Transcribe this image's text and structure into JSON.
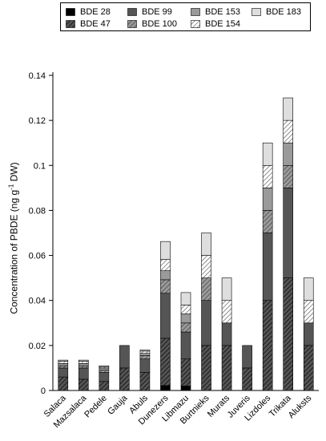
{
  "chart_data": {
    "type": "bar",
    "stacked": true,
    "ylabel_pre": "Concentration of PBDE (ng g",
    "ylabel_sup": "-1",
    "ylabel_post": " DW)",
    "ylim": [
      0,
      0.14
    ],
    "yticks": [
      "0",
      "0.02",
      "0.04",
      "0.06",
      "0.08",
      "0.1",
      "0.12",
      "0.14"
    ],
    "categories": [
      "Salaca",
      "Mazsalaca",
      "Pedele",
      "Gauja",
      "Abuls",
      "Dunezers",
      "Libmazu",
      "Burtnieks",
      "Murats",
      "Juveris",
      "Lizdoles",
      "Trikata",
      "Aluksts"
    ],
    "legend_position": "top",
    "series": [
      {
        "name": "BDE 28",
        "fill": "#000000",
        "pattern": "solid",
        "values": [
          0,
          0,
          0,
          0,
          0,
          0.0022,
          0.002,
          0,
          0,
          0,
          0,
          0,
          0
        ]
      },
      {
        "name": "BDE 47",
        "fill": "#555555",
        "pattern": "hatch",
        "values": [
          0.006,
          0.005,
          0.004,
          0.01,
          0.008,
          0.021,
          0.012,
          0.02,
          0.02,
          0.01,
          0.04,
          0.05,
          0.02
        ]
      },
      {
        "name": "BDE 99",
        "fill": "#555555",
        "pattern": "solid",
        "values": [
          0.004,
          0.005,
          0.004,
          0.01,
          0.006,
          0.02,
          0.012,
          0.02,
          0.01,
          0.01,
          0.03,
          0.04,
          0.01
        ]
      },
      {
        "name": "BDE 100",
        "fill": "#9a9a9a",
        "pattern": "hatch",
        "values": [
          0.001,
          0.001,
          0.001,
          0,
          0.0015,
          0.006,
          0.004,
          0.01,
          0,
          0,
          0.01,
          0.01,
          0
        ]
      },
      {
        "name": "BDE 153",
        "fill": "#9a9a9a",
        "pattern": "solid",
        "values": [
          0.001,
          0.001,
          0.001,
          0,
          0.001,
          0.004,
          0.004,
          0,
          0,
          0,
          0.01,
          0.01,
          0
        ]
      },
      {
        "name": "BDE 154",
        "fill": "#ffffff",
        "pattern": "hatch",
        "values": [
          0.001,
          0.001,
          0.0005,
          0,
          0.001,
          0.005,
          0.004,
          0.01,
          0.01,
          0,
          0.01,
          0.01,
          0.01
        ]
      },
      {
        "name": "BDE 183",
        "fill": "#dedede",
        "pattern": "solid",
        "values": [
          0.0005,
          0.0005,
          0.0005,
          0,
          0.0005,
          0.008,
          0.0055,
          0.01,
          0.01,
          0,
          0.01,
          0.01,
          0.01
        ]
      }
    ]
  }
}
